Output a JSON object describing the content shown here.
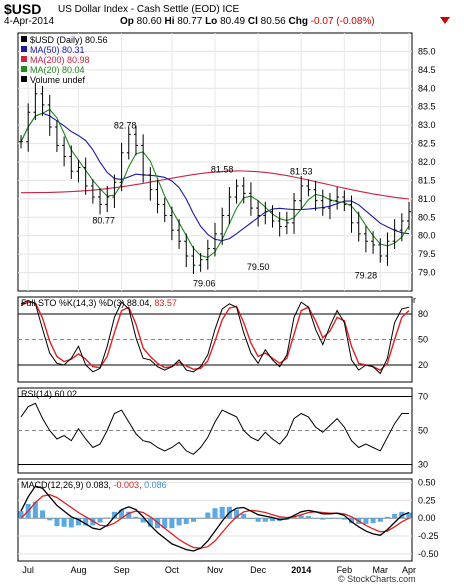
{
  "header": {
    "symbol": "$USD",
    "name": "US Dollar Index - Cash Settle (EOD) ICE",
    "date": "4-Apr-2014",
    "open_label": "Op",
    "open": "80.60",
    "high_label": "Hi",
    "high": "80.77",
    "low_label": "Lo",
    "low": "80.49",
    "close_label": "Cl",
    "close": "80.56",
    "chg_label": "Chg",
    "chg": "-0.07 (-0.08%)",
    "chg_icon": "down-triangle-icon"
  },
  "watermark": "© StockCharts.com",
  "chart_data": [
    {
      "type": "ohlc",
      "panel": "price",
      "legend": [
        {
          "text": "$USD (Daily) 80.56",
          "color": "#000000"
        },
        {
          "text": "MA(50) 80.31",
          "color": "#1a1aa8"
        },
        {
          "text": "MA(200) 80.98",
          "color": "#cc2244"
        },
        {
          "text": "MA(20) 80.04",
          "color": "#228822"
        },
        {
          "text": "Volume undef",
          "color": "#000000"
        }
      ],
      "ylim": [
        78.5,
        85.5
      ],
      "yticks": [
        79.0,
        79.5,
        80.0,
        80.5,
        81.0,
        81.5,
        82.0,
        82.5,
        83.0,
        83.5,
        84.0,
        84.5,
        85.0
      ],
      "xticks": [
        "Jul",
        "Aug",
        "Sep",
        "Oct",
        "Nov",
        "Dec",
        "2014",
        "Feb",
        "Mar",
        "Apr"
      ],
      "annotations": [
        {
          "text": "82.78",
          "x": 14.5,
          "y": 82.78
        },
        {
          "text": "80.77",
          "x": 11.5,
          "y": 80.77
        },
        {
          "text": "81.58",
          "x": 28.0,
          "y": 81.58
        },
        {
          "text": "79.06",
          "x": 25.5,
          "y": 79.06
        },
        {
          "text": "79.50",
          "x": 33.0,
          "y": 79.5
        },
        {
          "text": "81.53",
          "x": 39.0,
          "y": 81.53
        },
        {
          "text": "79.28",
          "x": 48.0,
          "y": 79.28
        }
      ],
      "close": [
        82.55,
        83.35,
        83.85,
        83.55,
        82.95,
        82.45,
        82.15,
        81.75,
        81.85,
        81.35,
        81.05,
        80.85,
        81.05,
        81.45,
        82.25,
        82.75,
        82.45,
        81.65,
        81.25,
        80.85,
        80.55,
        80.15,
        79.85,
        79.45,
        79.2,
        79.35,
        79.65,
        80.05,
        80.55,
        81.05,
        81.35,
        81.15,
        80.75,
        80.55,
        80.65,
        80.4,
        80.25,
        80.35,
        80.95,
        81.35,
        81.25,
        80.95,
        80.75,
        80.95,
        81.05,
        80.85,
        80.35,
        80.05,
        79.85,
        79.75,
        79.45,
        79.85,
        80.15,
        80.4,
        80.65
      ]
    },
    {
      "type": "line",
      "panel": "stochastic",
      "legend_label": "Full STO %K(14,3) %D(3)",
      "legend_k": "88.04",
      "legend_d": "83.57",
      "ylim": [
        0,
        100
      ],
      "yticks": [
        20,
        50,
        80
      ],
      "k": [
        92,
        96,
        92,
        62,
        34,
        22,
        20,
        28,
        42,
        20,
        12,
        16,
        42,
        76,
        94,
        86,
        52,
        28,
        26,
        18,
        14,
        18,
        26,
        14,
        12,
        18,
        32,
        62,
        86,
        92,
        88,
        58,
        34,
        22,
        38,
        26,
        18,
        32,
        76,
        94,
        88,
        62,
        44,
        66,
        84,
        70,
        26,
        14,
        20,
        18,
        10,
        28,
        70,
        86,
        88
      ],
      "d": [
        90,
        94,
        93,
        75,
        48,
        30,
        24,
        27,
        33,
        27,
        18,
        17,
        30,
        58,
        84,
        88,
        68,
        40,
        30,
        22,
        17,
        18,
        23,
        19,
        15,
        16,
        25,
        48,
        73,
        87,
        89,
        70,
        46,
        30,
        34,
        28,
        22,
        28,
        56,
        84,
        88,
        72,
        52,
        60,
        76,
        72,
        42,
        22,
        20,
        18,
        14,
        22,
        50,
        76,
        84
      ]
    },
    {
      "type": "line",
      "panel": "rsi",
      "legend_label": "RSI(14)",
      "legend_value": "60.02",
      "ylim": [
        25,
        75
      ],
      "yticks": [
        30,
        50,
        70
      ],
      "values": [
        58,
        64,
        66,
        57,
        50,
        45,
        47,
        44,
        51,
        45,
        40,
        42,
        50,
        60,
        62,
        55,
        48,
        44,
        43,
        40,
        38,
        40,
        43,
        38,
        36,
        40,
        46,
        55,
        62,
        60,
        58,
        50,
        46,
        44,
        49,
        45,
        42,
        47,
        57,
        60,
        58,
        52,
        49,
        53,
        57,
        52,
        44,
        40,
        42,
        40,
        38,
        46,
        54,
        60,
        60
      ]
    },
    {
      "type": "line",
      "panel": "macd",
      "legend_label": "MACD(12,26,9)",
      "legend_macd": "0.083",
      "legend_signal": "-0.003",
      "legend_hist": "0.086",
      "ylim": [
        -0.6,
        0.55
      ],
      "yticks": [
        -0.5,
        -0.25,
        0.0,
        0.25,
        0.5
      ],
      "macd": [
        0.1,
        0.3,
        0.45,
        0.42,
        0.3,
        0.18,
        0.1,
        0.02,
        -0.02,
        -0.08,
        -0.14,
        -0.16,
        -0.1,
        0.02,
        0.12,
        0.16,
        0.12,
        0.02,
        -0.1,
        -0.2,
        -0.28,
        -0.36,
        -0.4,
        -0.44,
        -0.46,
        -0.42,
        -0.32,
        -0.18,
        -0.04,
        0.08,
        0.14,
        0.15,
        0.1,
        0.05,
        0.03,
        0.01,
        -0.02,
        -0.01,
        0.04,
        0.09,
        0.11,
        0.09,
        0.06,
        0.06,
        0.07,
        0.04,
        -0.05,
        -0.12,
        -0.18,
        -0.22,
        -0.24,
        -0.16,
        -0.06,
        0.04,
        0.08
      ],
      "signal": [
        0.0,
        0.1,
        0.22,
        0.31,
        0.33,
        0.29,
        0.22,
        0.15,
        0.08,
        0.02,
        -0.04,
        -0.1,
        -0.11,
        -0.07,
        0.0,
        0.07,
        0.1,
        0.08,
        0.02,
        -0.06,
        -0.14,
        -0.22,
        -0.3,
        -0.36,
        -0.41,
        -0.42,
        -0.4,
        -0.32,
        -0.2,
        -0.08,
        0.02,
        0.09,
        0.11,
        0.1,
        0.08,
        0.05,
        0.02,
        0.01,
        0.02,
        0.05,
        0.08,
        0.09,
        0.08,
        0.07,
        0.07,
        0.06,
        0.02,
        -0.04,
        -0.1,
        -0.15,
        -0.19,
        -0.18,
        -0.12,
        -0.05,
        0.0
      ],
      "hist": [
        0.1,
        0.2,
        0.23,
        0.11,
        -0.03,
        -0.11,
        -0.12,
        -0.13,
        -0.1,
        -0.1,
        -0.1,
        -0.06,
        0.01,
        0.09,
        0.12,
        0.09,
        0.02,
        -0.06,
        -0.12,
        -0.14,
        -0.14,
        -0.14,
        -0.1,
        -0.08,
        -0.05,
        0.0,
        0.08,
        0.14,
        0.16,
        0.16,
        0.12,
        0.06,
        -0.01,
        -0.05,
        -0.05,
        -0.04,
        -0.04,
        -0.02,
        0.02,
        0.04,
        0.03,
        0.0,
        -0.02,
        -0.01,
        0.0,
        -0.02,
        -0.07,
        -0.08,
        -0.08,
        -0.07,
        -0.05,
        0.02,
        0.06,
        0.09,
        0.08
      ]
    }
  ]
}
